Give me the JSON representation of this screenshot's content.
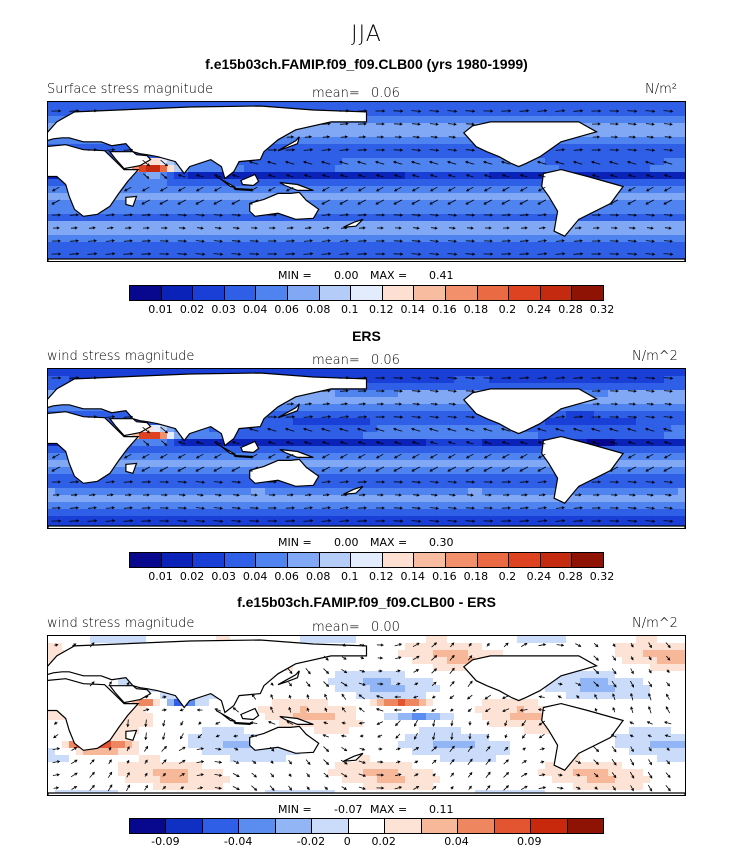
{
  "header": {
    "season": "JJA"
  },
  "panels": [
    {
      "title": "f.e15b03ch.FAMIP.f09_f09.CLB00 (yrs 1980-1999)",
      "left_label": "Surface stress magnitude",
      "mean_label": "mean=",
      "mean_value": "0.06",
      "units": "N/m²",
      "min_label": "MIN =",
      "min_value": "0.00",
      "max_label": "MAX =",
      "max_value": "0.41",
      "colorbar_ticks": [
        "0.01",
        "0.02",
        "0.03",
        "0.04",
        "0.06",
        "0.08",
        "0.1",
        "0.12",
        "0.14",
        "0.16",
        "0.18",
        "0.2",
        "0.24",
        "0.28",
        "0.32"
      ],
      "field_kind": "model"
    },
    {
      "title": "ERS",
      "left_label": "wind stress magnitude",
      "mean_label": "mean=",
      "mean_value": "0.06",
      "units": "N/m^2",
      "min_label": "MIN =",
      "min_value": "0.00",
      "max_label": "MAX =",
      "max_value": "0.30",
      "colorbar_ticks": [
        "0.01",
        "0.02",
        "0.03",
        "0.04",
        "0.06",
        "0.08",
        "0.1",
        "0.12",
        "0.14",
        "0.16",
        "0.18",
        "0.2",
        "0.24",
        "0.28",
        "0.32"
      ],
      "field_kind": "obs"
    },
    {
      "title": "f.e15b03ch.FAMIP.f09_f09.CLB00 - ERS",
      "left_label": "wind stress magnitude",
      "mean_label": "mean=",
      "mean_value": "0.00",
      "units": "N/m^2",
      "min_label": "MIN =",
      "min_value": "-0.07",
      "max_label": "MAX =",
      "max_value": "0.11",
      "colorbar_ticks": [
        "-0.09",
        "-0.04",
        "-0.02",
        "0",
        "0.02",
        "0.04",
        "0.09"
      ],
      "field_kind": "diff"
    }
  ],
  "colors": {
    "abs_scale": [
      "#08088f",
      "#0a22b8",
      "#1a3fd6",
      "#2f5fe6",
      "#4f84f0",
      "#80a8f4",
      "#b4cdf8",
      "#e2ecfc",
      "#fde0d2",
      "#f8bca1",
      "#f2906c",
      "#ea6a43",
      "#dd4320",
      "#c42a10",
      "#8f1305"
    ],
    "diff_scale": [
      "#08088f",
      "#1030c4",
      "#2f5fe6",
      "#5b8cf0",
      "#92b6f5",
      "#cbdcfa",
      "#ffffff",
      "#fde3d6",
      "#f7b799",
      "#ee8660",
      "#e25530",
      "#c8290d",
      "#8f1305"
    ],
    "land": "#ffffff",
    "coast": "#000000",
    "arrow": "#000000"
  }
}
